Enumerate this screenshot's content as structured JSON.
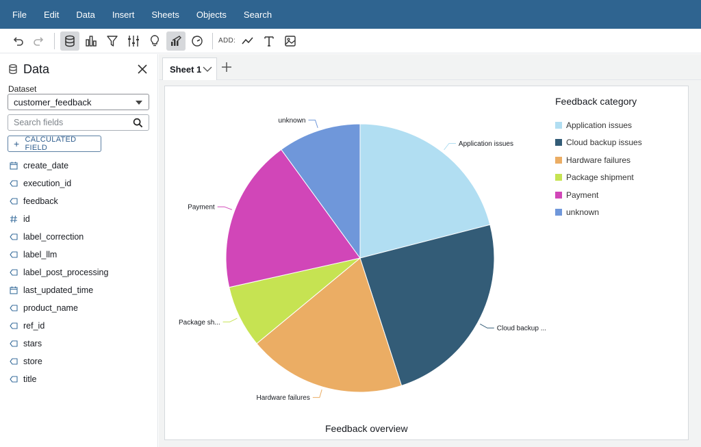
{
  "menu": [
    "File",
    "Edit",
    "Data",
    "Insert",
    "Sheets",
    "Objects",
    "Search"
  ],
  "toolbar": {
    "add_label": "ADD:",
    "buttons": [
      "undo-icon",
      "redo-icon",
      "database-icon",
      "bar-chart-icon",
      "filter-icon",
      "sliders-icon",
      "lightbulb-icon",
      "brush-chart-icon",
      "gauge-icon",
      "line-add-icon",
      "text-add-icon",
      "image-add-icon"
    ]
  },
  "sidebar": {
    "title": "Data",
    "dataset_label": "Dataset",
    "dataset_value": "customer_feedback",
    "search_placeholder": "Search fields",
    "calc_label": "CALCULATED FIELD",
    "fields": [
      {
        "name": "create_date",
        "type": "date"
      },
      {
        "name": "execution_id",
        "type": "text"
      },
      {
        "name": "feedback",
        "type": "text"
      },
      {
        "name": "id",
        "type": "number"
      },
      {
        "name": "label_correction",
        "type": "text"
      },
      {
        "name": "label_llm",
        "type": "text"
      },
      {
        "name": "label_post_processing",
        "type": "text"
      },
      {
        "name": "last_updated_time",
        "type": "date"
      },
      {
        "name": "product_name",
        "type": "text"
      },
      {
        "name": "ref_id",
        "type": "text"
      },
      {
        "name": "stars",
        "type": "text"
      },
      {
        "name": "store",
        "type": "text"
      },
      {
        "name": "title",
        "type": "text"
      }
    ]
  },
  "sheets": {
    "active": "Sheet 1"
  },
  "colors": {
    "menubar": "#2f6490",
    "accent": "#2f5e8e"
  },
  "chart_data": {
    "type": "pie",
    "title": "Feedback overview",
    "legend_title": "Feedback category",
    "legend_position": "top-right",
    "slices": [
      {
        "label": "Application issues",
        "short_label": "Application issues",
        "value": 21,
        "color": "#b1def2"
      },
      {
        "label": "Cloud backup issues",
        "short_label": "Cloud backup ...",
        "value": 24,
        "color": "#335c77"
      },
      {
        "label": "Hardware failures",
        "short_label": "Hardware failures",
        "value": 19,
        "color": "#ebad64"
      },
      {
        "label": "Package shipment",
        "short_label": "Package sh...",
        "value": 7.5,
        "color": "#c6e352"
      },
      {
        "label": "Payment",
        "short_label": "Payment",
        "value": 18.5,
        "color": "#d146b8"
      },
      {
        "label": "unknown",
        "short_label": "unknown",
        "value": 10,
        "color": "#6f97da"
      }
    ]
  }
}
